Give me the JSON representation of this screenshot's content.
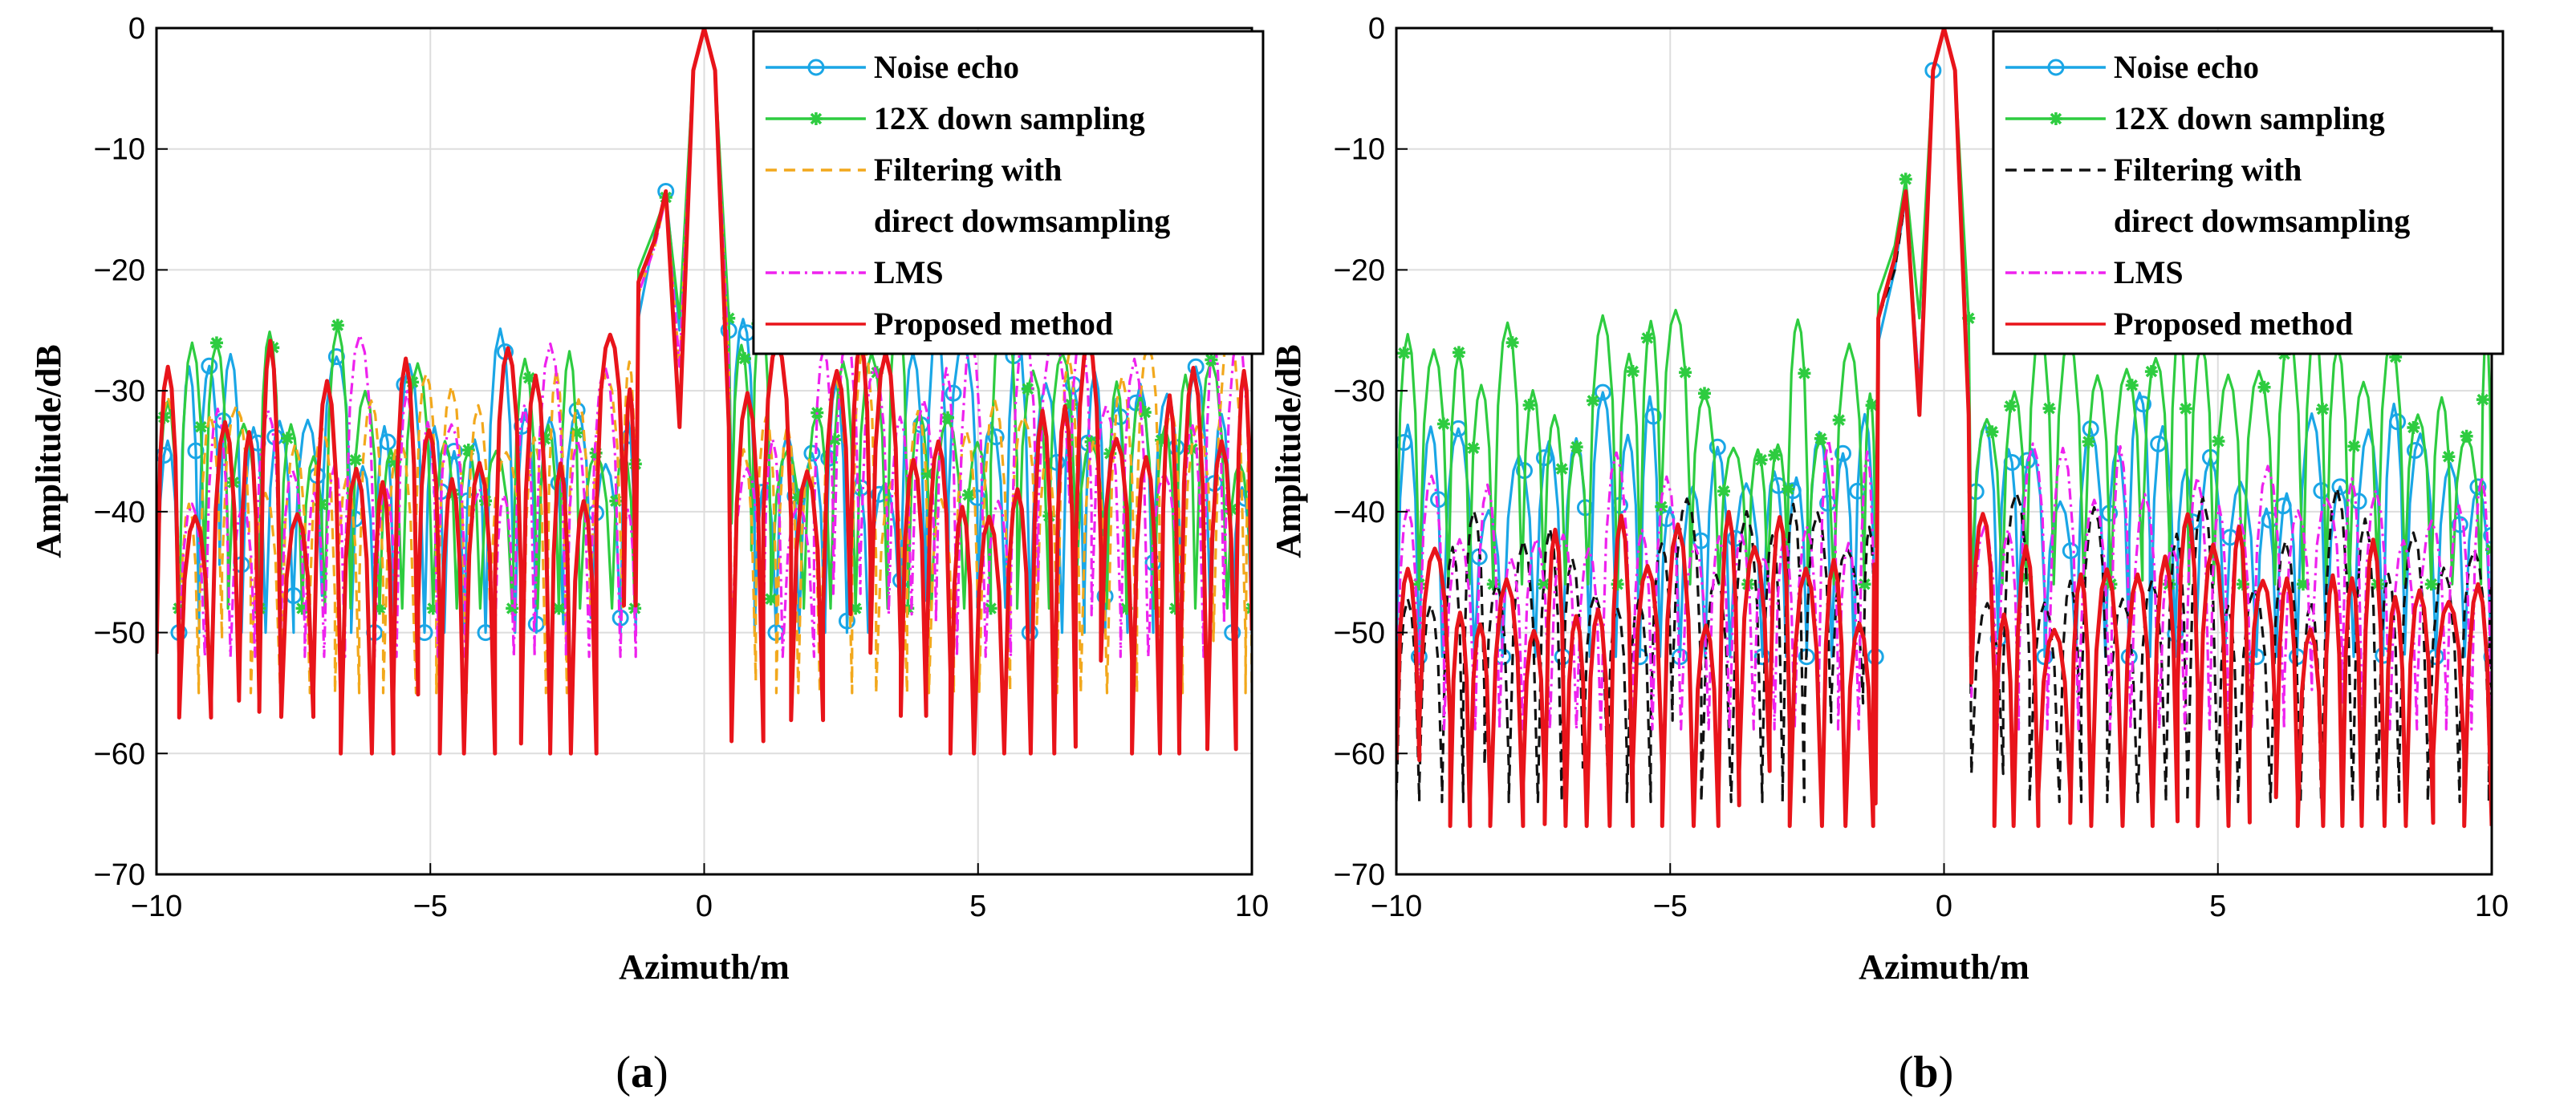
{
  "figure": {
    "panels": [
      {
        "id": "a",
        "caption_open": "(",
        "caption_letter": "a",
        "caption_close": ")"
      },
      {
        "id": "b",
        "caption_open": "(",
        "caption_letter": "b",
        "caption_close": ")"
      }
    ]
  },
  "colors": {
    "noise_echo": "#1aa6e6",
    "down_sampling": "#2ecc40",
    "filtering_a": "#f2a81c",
    "filtering_b": "#111111",
    "lms": "#ee22ee",
    "proposed": "#e8141a",
    "grid": "#dddddd"
  },
  "chart_data": [
    {
      "type": "line",
      "panel": "a",
      "title": "",
      "xlabel": "Azimuth/m",
      "ylabel": "Amplitude/dB",
      "xlim": [
        -10,
        10
      ],
      "ylim": [
        -70,
        0
      ],
      "xticks": [
        -10,
        -5,
        0,
        5,
        10
      ],
      "yticks": [
        0,
        -10,
        -20,
        -30,
        -40,
        -50,
        -60,
        -70
      ],
      "grid": true,
      "legend_position": "top-right",
      "legend": [
        {
          "key": "noise_echo",
          "line1": "Noise echo",
          "line2": "",
          "style": "solid-circle"
        },
        {
          "key": "down_sampling",
          "line1": "12X down sampling",
          "line2": "",
          "style": "solid-star"
        },
        {
          "key": "filtering",
          "line1": "Filtering with",
          "line2": " direct dowmsampling",
          "style": "dashed"
        },
        {
          "key": "lms",
          "line1": "LMS",
          "line2": "",
          "style": "dashdot"
        },
        {
          "key": "proposed",
          "line1": "Proposed method",
          "line2": "",
          "style": "solid"
        }
      ],
      "series": [
        {
          "key": "noise_echo",
          "name": "Noise echo",
          "color": "noise_echo",
          "style": "solid",
          "marker": "circle",
          "envelope_min": -38,
          "envelope_max": -24,
          "null_depth": -50,
          "seed": 11,
          "mainlobe": [
            [
              -1.2,
              -24
            ],
            [
              -0.9,
              -17
            ],
            [
              -0.7,
              -13.5
            ],
            [
              -0.45,
              -25
            ],
            [
              -0.2,
              -3.5
            ],
            [
              0,
              0
            ],
            [
              0.2,
              -3.5
            ],
            [
              0.45,
              -25
            ]
          ]
        },
        {
          "key": "down_sampling",
          "name": "12X down sampling",
          "color": "down_sampling",
          "style": "solid",
          "marker": "star",
          "envelope_min": -36,
          "envelope_max": -22,
          "null_depth": -48,
          "seed": 23,
          "mainlobe": [
            [
              -1.2,
              -20
            ],
            [
              -0.9,
              -16.5
            ],
            [
              -0.7,
              -14
            ],
            [
              -0.45,
              -24
            ],
            [
              -0.2,
              -3.5
            ],
            [
              0,
              0
            ],
            [
              0.2,
              -3.5
            ],
            [
              0.45,
              -24
            ]
          ]
        },
        {
          "key": "filtering",
          "name": "Filtering with direct dowmsampling",
          "color": "filtering_a",
          "style": "dashed",
          "marker": "none",
          "envelope_min": -40,
          "envelope_max": -25,
          "null_depth": -55,
          "seed": 37,
          "mainlobe": [
            [
              -1.2,
              -22
            ],
            [
              -0.9,
              -18
            ],
            [
              -0.7,
              -14
            ],
            [
              -0.45,
              -28
            ],
            [
              -0.2,
              -3.5
            ],
            [
              0,
              0
            ],
            [
              0.2,
              -3.5
            ],
            [
              0.45,
              -28
            ]
          ]
        },
        {
          "key": "lms",
          "name": "LMS",
          "color": "lms",
          "style": "dashdot",
          "marker": "none",
          "envelope_min": -40,
          "envelope_max": -24,
          "null_depth": -52,
          "seed": 49,
          "mainlobe": [
            [
              -1.2,
              -22
            ],
            [
              -0.9,
              -18
            ],
            [
              -0.7,
              -14
            ],
            [
              -0.45,
              -28
            ],
            [
              -0.2,
              -3.5
            ],
            [
              0,
              0
            ],
            [
              0.2,
              -3.5
            ],
            [
              0.45,
              -28
            ]
          ]
        },
        {
          "key": "proposed",
          "name": "Proposed method",
          "color": "proposed",
          "style": "solid",
          "marker": "none",
          "envelope_min": -41,
          "envelope_max": -25,
          "null_depth": -60,
          "seed": 61,
          "mainlobe": [
            [
              -1.2,
              -21
            ],
            [
              -0.9,
              -17.5
            ],
            [
              -0.7,
              -13.5
            ],
            [
              -0.45,
              -33
            ],
            [
              -0.2,
              -3.5
            ],
            [
              0,
              0
            ],
            [
              0.2,
              -3.5
            ],
            [
              0.45,
              -33
            ]
          ]
        }
      ]
    },
    {
      "type": "line",
      "panel": "b",
      "title": "",
      "xlabel": "Azimuth/m",
      "ylabel": "Amplitude/dB",
      "xlim": [
        -10,
        10
      ],
      "ylim": [
        -70,
        0
      ],
      "xticks": [
        -10,
        -5,
        0,
        5,
        10
      ],
      "yticks": [
        0,
        -10,
        -20,
        -30,
        -40,
        -50,
        -60,
        -70
      ],
      "grid": true,
      "legend_position": "top-right",
      "legend": [
        {
          "key": "noise_echo",
          "line1": "Noise echo",
          "line2": "",
          "style": "solid-circle"
        },
        {
          "key": "down_sampling",
          "line1": "12X down sampling",
          "line2": "",
          "style": "solid-star"
        },
        {
          "key": "filtering",
          "line1": "Filtering with",
          "line2": " direct dowmsampling",
          "style": "dashed"
        },
        {
          "key": "lms",
          "line1": "LMS",
          "line2": "",
          "style": "dashdot"
        },
        {
          "key": "proposed",
          "line1": "Proposed method",
          "line2": "",
          "style": "solid"
        }
      ],
      "series": [
        {
          "key": "noise_echo",
          "name": "Noise echo",
          "color": "noise_echo",
          "style": "solid",
          "marker": "circle",
          "envelope_min": -40,
          "envelope_max": -30,
          "null_depth": -52,
          "seed": 71,
          "mainlobe": [
            [
              -1.2,
              -26
            ],
            [
              -0.9,
              -20
            ],
            [
              -0.7,
              -14
            ],
            [
              -0.45,
              -30
            ],
            [
              -0.2,
              -3.5
            ],
            [
              0,
              0
            ],
            [
              0.2,
              -3.5
            ],
            [
              0.45,
              -30
            ]
          ]
        },
        {
          "key": "down_sampling",
          "name": "12X down sampling",
          "color": "down_sampling",
          "style": "solid",
          "marker": "star",
          "envelope_min": -35,
          "envelope_max": -23,
          "null_depth": -46,
          "seed": 83,
          "mainlobe": [
            [
              -1.2,
              -22
            ],
            [
              -0.9,
              -18
            ],
            [
              -0.7,
              -12.5
            ],
            [
              -0.45,
              -24
            ],
            [
              -0.2,
              -3.5
            ],
            [
              0,
              0
            ],
            [
              0.2,
              -3.5
            ],
            [
              0.45,
              -24
            ]
          ]
        },
        {
          "key": "filtering",
          "name": "Filtering with direct dowmsampling",
          "color": "filtering_b",
          "style": "dashed",
          "marker": "none",
          "envelope_min": -48,
          "envelope_max": -38,
          "null_depth": -64,
          "seed": 97,
          "mainlobe": [
            [
              -1.2,
              -24
            ],
            [
              -0.9,
              -20
            ],
            [
              -0.7,
              -14
            ],
            [
              -0.45,
              -32
            ],
            [
              -0.2,
              -3.5
            ],
            [
              0,
              0
            ],
            [
              0.2,
              -3.5
            ],
            [
              0.45,
              -32
            ]
          ]
        },
        {
          "key": "lms",
          "name": "LMS",
          "color": "lms",
          "style": "dashdot",
          "marker": "none",
          "envelope_min": -44,
          "envelope_max": -34,
          "null_depth": -58,
          "seed": 101,
          "mainlobe": [
            [
              -1.2,
              -24
            ],
            [
              -0.9,
              -19
            ],
            [
              -0.7,
              -14
            ],
            [
              -0.45,
              -30
            ],
            [
              -0.2,
              -3.5
            ],
            [
              0,
              0
            ],
            [
              0.2,
              -3.5
            ],
            [
              0.45,
              -30
            ]
          ]
        },
        {
          "key": "proposed",
          "name": "Proposed method",
          "color": "proposed",
          "style": "solid",
          "marker": "none",
          "envelope_min": -50,
          "envelope_max": -40,
          "null_depth": -66,
          "seed": 113,
          "mainlobe": [
            [
              -1.2,
              -24
            ],
            [
              -0.9,
              -19
            ],
            [
              -0.7,
              -13.5
            ],
            [
              -0.45,
              -32
            ],
            [
              -0.2,
              -3.5
            ],
            [
              0,
              0
            ],
            [
              0.2,
              -3.5
            ],
            [
              0.45,
              -32
            ]
          ]
        }
      ]
    }
  ]
}
